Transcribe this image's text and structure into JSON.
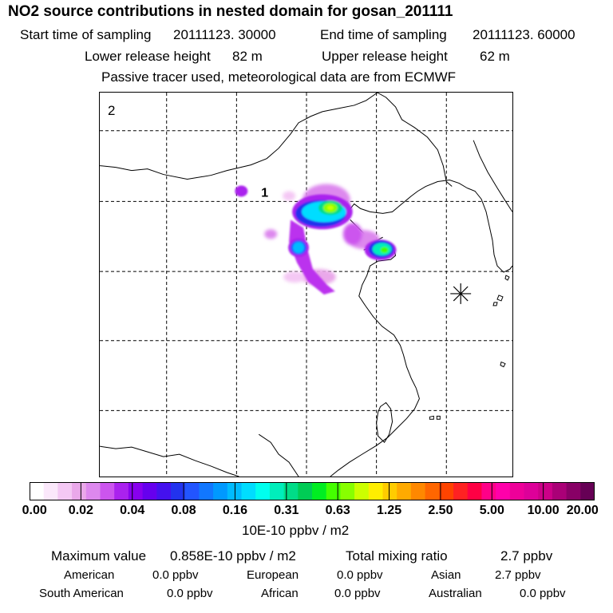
{
  "title": "NO2 source contributions in nested domain for gosan_201111",
  "header": {
    "start_label": "Start time of sampling",
    "start_value": "20111123. 30000",
    "end_label": "End time of sampling",
    "end_value": "20111123. 60000",
    "lower_label": "Lower release height",
    "lower_value": "82 m",
    "upper_label": "Upper release height",
    "upper_value": "62 m",
    "note": "Passive tracer used, meteorological data are from ECMWF"
  },
  "map": {
    "panel_label": "2",
    "source_label": "1",
    "receptor_marker": "asterisk-receptor"
  },
  "colorbar": {
    "ticks": [
      "0.00",
      "0.02",
      "0.04",
      "0.08",
      "0.16",
      "0.31",
      "0.63",
      "1.25",
      "2.50",
      "5.00",
      "10.00",
      "20.00"
    ],
    "unit": "10E-10 ppbv / m2",
    "colors": [
      "#ffffff",
      "#fbe8fb",
      "#f4c8f4",
      "#eaa8ea",
      "#dd88ee",
      "#cc55ee",
      "#aa22ee",
      "#8800ee",
      "#6600ee",
      "#4411ee",
      "#2233ee",
      "#2255ff",
      "#1177ff",
      "#0099ff",
      "#00bbff",
      "#00ddff",
      "#00ffee",
      "#00eebb",
      "#00dd88",
      "#00cc55",
      "#00ee22",
      "#44ff00",
      "#88ff00",
      "#ccff00",
      "#ffee00",
      "#ffcc00",
      "#ffaa00",
      "#ff8800",
      "#ff6600",
      "#ff4400",
      "#ff2222",
      "#ff0044",
      "#ff0088",
      "#ff00aa",
      "#ee0099",
      "#dd0099",
      "#cc0088",
      "#aa0077",
      "#880066",
      "#660055"
    ]
  },
  "stats": {
    "max_label": "Maximum value",
    "max_value": "0.858E-10 ppbv / m2",
    "total_label": "Total mixing ratio",
    "total_value": "2.7 ppbv"
  },
  "regions": [
    {
      "name": "American",
      "value": "0.0 ppbv"
    },
    {
      "name": "European",
      "value": "0.0 ppbv"
    },
    {
      "name": "Asian",
      "value": "2.7 ppbv"
    },
    {
      "name": "South American",
      "value": "0.0 ppbv"
    },
    {
      "name": "African",
      "value": "0.0 ppbv"
    },
    {
      "name": "Australian",
      "value": "0.0 ppbv"
    }
  ]
}
